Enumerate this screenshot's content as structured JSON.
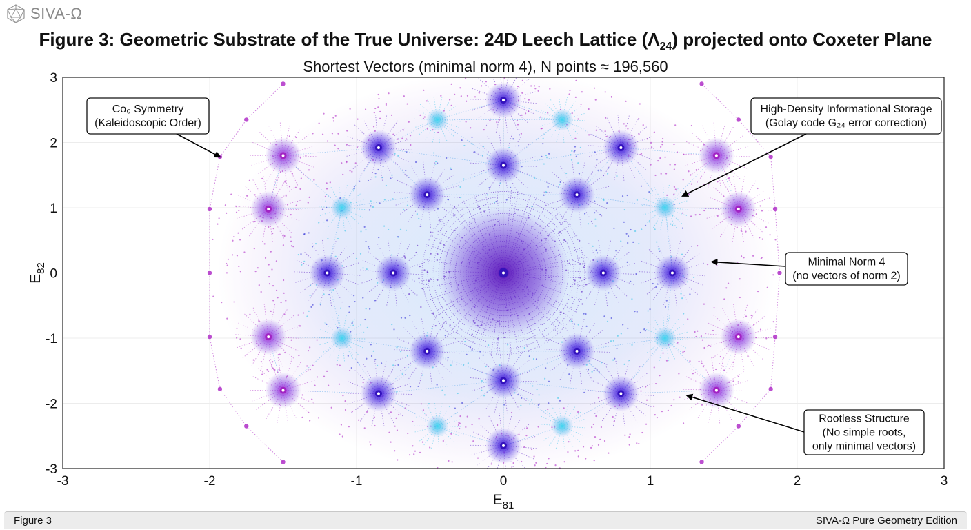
{
  "brand": {
    "name": "SIVA-Ω",
    "icon": "icosahedron-logo-icon"
  },
  "figure": {
    "title_main": "Figure 3: Geometric Substrate of the True Universe: 24D Leech Lattice (Λ",
    "title_sub": "24",
    "title_end": ") projected onto Coxeter Plane",
    "subtitle": "Shortest Vectors (minimal norm 4), N points ≈ 196,560"
  },
  "chart_data": {
    "type": "scatter",
    "title": "Figure 3: Geometric Substrate of the True Universe: 24D Leech Lattice (Λ24) projected onto Coxeter Plane",
    "subtitle": "Shortest Vectors (minimal norm 4), N points ≈ 196,560",
    "xlabel": {
      "base": "E",
      "sub": "81"
    },
    "ylabel": {
      "base": "E",
      "sub": "82"
    },
    "xlim": [
      -3,
      3
    ],
    "ylim": [
      -3,
      3
    ],
    "xticks": [
      -3,
      -2,
      -1,
      0,
      1,
      2,
      3
    ],
    "yticks": [
      -3,
      -2,
      -1,
      0,
      1,
      2,
      3
    ],
    "xtick_labels": [
      "-3",
      "-2",
      "-1",
      "0",
      "1",
      "2",
      "3"
    ],
    "ytick_labels": [
      "3",
      "2",
      "1",
      "0",
      "-1",
      "-2",
      "-3"
    ],
    "grid": true,
    "colors": {
      "violet": "#5a1fc4",
      "magenta": "#b030c8",
      "cyan": "#3cc4e8",
      "blue": "#3a3ad8"
    },
    "hub_points": [
      {
        "x": 0.0,
        "y": 0.0,
        "ring": "center"
      },
      {
        "x": -0.75,
        "y": 0.0,
        "ring": "r1"
      },
      {
        "x": 0.68,
        "y": 0.0,
        "ring": "r1"
      },
      {
        "x": -0.52,
        "y": 1.2,
        "ring": "r1"
      },
      {
        "x": 0.5,
        "y": 1.2,
        "ring": "r1"
      },
      {
        "x": -0.52,
        "y": -1.2,
        "ring": "r1"
      },
      {
        "x": 0.5,
        "y": -1.2,
        "ring": "r1"
      },
      {
        "x": 0.0,
        "y": 1.65,
        "ring": "r1"
      },
      {
        "x": 0.0,
        "y": -1.65,
        "ring": "r1"
      },
      {
        "x": -1.2,
        "y": 0.0,
        "ring": "r2"
      },
      {
        "x": 1.15,
        "y": 0.0,
        "ring": "r2"
      },
      {
        "x": -0.85,
        "y": 1.92,
        "ring": "r2"
      },
      {
        "x": 0.8,
        "y": 1.92,
        "ring": "r2"
      },
      {
        "x": -0.85,
        "y": -1.85,
        "ring": "r2"
      },
      {
        "x": 0.8,
        "y": -1.85,
        "ring": "r2"
      },
      {
        "x": 0.0,
        "y": 2.65,
        "ring": "r2"
      },
      {
        "x": 0.0,
        "y": -2.65,
        "ring": "r2"
      },
      {
        "x": -1.6,
        "y": 0.98,
        "ring": "r3"
      },
      {
        "x": 1.6,
        "y": 0.98,
        "ring": "r3"
      },
      {
        "x": -1.6,
        "y": -0.98,
        "ring": "r3"
      },
      {
        "x": 1.6,
        "y": -0.98,
        "ring": "r3"
      },
      {
        "x": -1.5,
        "y": 1.8,
        "ring": "r3"
      },
      {
        "x": 1.45,
        "y": 1.8,
        "ring": "r3"
      },
      {
        "x": -1.5,
        "y": -1.8,
        "ring": "r3"
      },
      {
        "x": 1.45,
        "y": -1.8,
        "ring": "r3"
      },
      {
        "x": -1.1,
        "y": 1.0,
        "ring": "cyan"
      },
      {
        "x": 1.1,
        "y": 1.0,
        "ring": "cyan"
      },
      {
        "x": -1.1,
        "y": -1.0,
        "ring": "cyan"
      },
      {
        "x": 1.1,
        "y": -1.0,
        "ring": "cyan"
      },
      {
        "x": -0.45,
        "y": 2.35,
        "ring": "cyan"
      },
      {
        "x": 0.4,
        "y": 2.35,
        "ring": "cyan"
      },
      {
        "x": -0.45,
        "y": -2.35,
        "ring": "cyan"
      },
      {
        "x": 0.4,
        "y": -2.35,
        "ring": "cyan"
      }
    ],
    "annotations": [
      {
        "text": [
          "Co₀ Symmetry",
          "(Kaleidoscopic Order)"
        ],
        "arrow_to": {
          "x": -1.93,
          "y": 1.78
        }
      },
      {
        "text": [
          "High-Density Informational Storage",
          "(Golay code G₂₄ error correction)"
        ],
        "arrow_to": {
          "x": 1.22,
          "y": 1.18
        }
      },
      {
        "text": [
          "Minimal Norm 4",
          "(no vectors of norm 2)"
        ],
        "arrow_to": {
          "x": 1.42,
          "y": 0.17
        }
      },
      {
        "text": [
          "Rootless Structure",
          "(No simple roots,",
          "only minimal vectors)"
        ],
        "arrow_to": {
          "x": 1.25,
          "y": -1.88
        }
      }
    ]
  },
  "status_bar": {
    "left": "Figure 3",
    "right": "SIVA-Ω Pure Geometry Edition"
  }
}
